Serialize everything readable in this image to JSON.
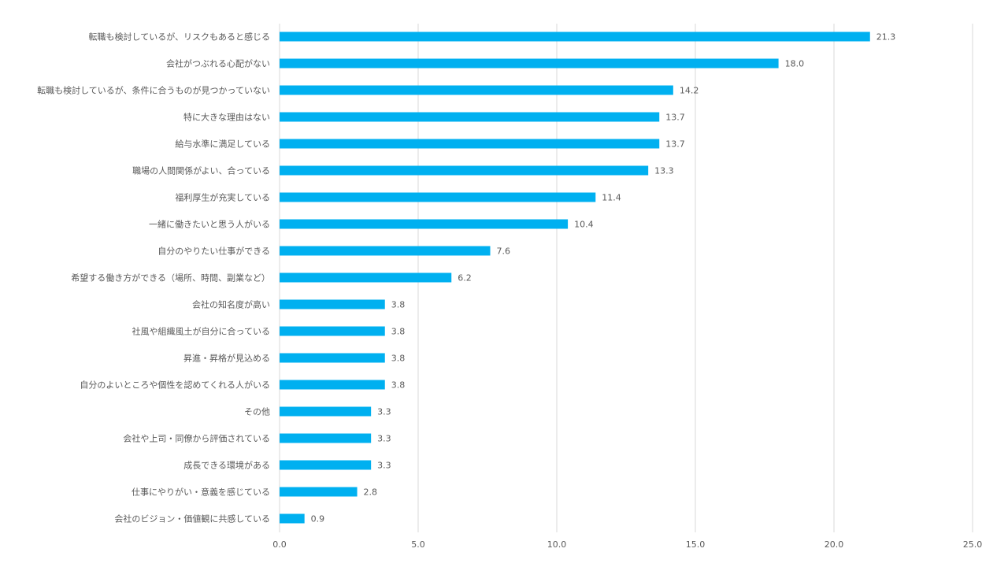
{
  "chart_data": {
    "type": "bar",
    "orientation": "horizontal",
    "categories": [
      "転職も検討しているが、リスクもあると感じる",
      "会社がつぶれる心配がない",
      "転職も検討しているが、条件に合うものが見つかっていない",
      "特に大きな理由はない",
      "給与水準に満足している",
      "職場の人間関係がよい、合っている",
      "福利厚生が充実している",
      "一緒に働きたいと思う人がいる",
      "自分のやりたい仕事ができる",
      "希望する働き方ができる（場所、時間、副業など）",
      "会社の知名度が高い",
      "社風や組織風土が自分に合っている",
      "昇進・昇格が見込める",
      "自分のよいところや個性を認めてくれる人がいる",
      "その他",
      "会社や上司・同僚から評価されている",
      "成長できる環境がある",
      "仕事にやりがい・意義を感じている",
      "会社のビジョン・価値観に共感している"
    ],
    "values": [
      21.3,
      18.0,
      14.2,
      13.7,
      13.7,
      13.3,
      11.4,
      10.4,
      7.6,
      6.2,
      3.8,
      3.8,
      3.8,
      3.8,
      3.3,
      3.3,
      3.3,
      2.8,
      0.9
    ],
    "value_labels": [
      "21.3",
      "18.0",
      "14.2",
      "13.7",
      "13.7",
      "13.3",
      "11.4",
      "10.4",
      "7.6",
      "6.2",
      "3.8",
      "3.8",
      "3.8",
      "3.8",
      "3.3",
      "3.3",
      "3.3",
      "2.8",
      "0.9"
    ],
    "xlim": [
      0,
      25
    ],
    "x_ticks": [
      0,
      5,
      10,
      15,
      20,
      25
    ],
    "x_tick_labels": [
      "0.0",
      "5.0",
      "10.0",
      "15.0",
      "20.0",
      "25.0"
    ],
    "grid": "vertical",
    "legend": "none",
    "bar_color": "#00b0f0",
    "grid_color": "#d9d9d9",
    "text_color": "#595959"
  }
}
